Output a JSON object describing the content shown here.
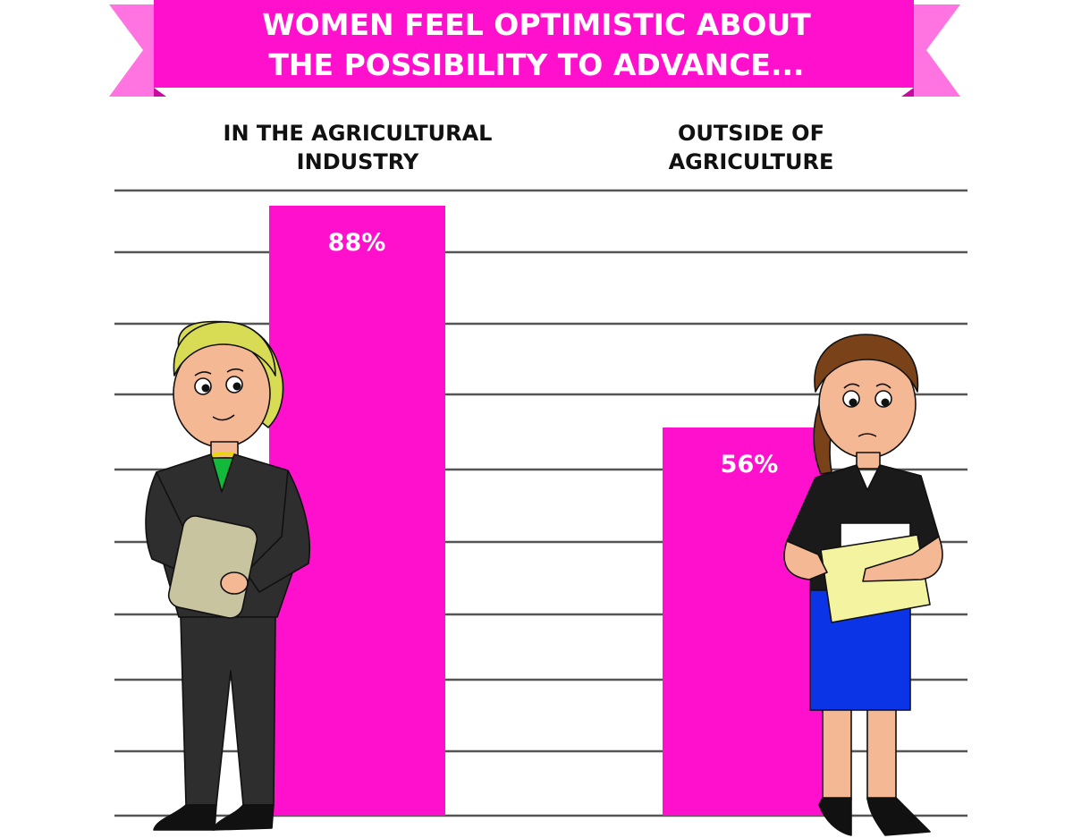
{
  "banner": {
    "line1": "WOMEN FEEL OPTIMISTIC ABOUT",
    "line2": "THE POSSIBILITY TO ADVANCE..."
  },
  "categories": {
    "left": {
      "line1": "IN THE AGRICULTURAL",
      "line2": "INDUSTRY"
    },
    "right": {
      "line1": "OUTSIDE OF",
      "line2": "AGRICULTURE"
    }
  },
  "chart_data": {
    "type": "bar",
    "title": "WOMEN FEEL OPTIMISTIC ABOUT THE POSSIBILITY TO ADVANCE...",
    "categories": [
      "IN THE AGRICULTURAL INDUSTRY",
      "OUTSIDE OF AGRICULTURE"
    ],
    "values": [
      88,
      56
    ],
    "value_labels": [
      "88%",
      "56%"
    ],
    "unit": "%",
    "ylim": [
      0,
      100
    ],
    "grid": true,
    "legend": "none"
  },
  "colors": {
    "bar": "#ff10cc",
    "banner": "#ff10cc",
    "banner_tail": "#ff74e1",
    "grid": "#555555"
  },
  "illustrations": [
    "woman-smiling-figure",
    "woman-worried-figure"
  ]
}
